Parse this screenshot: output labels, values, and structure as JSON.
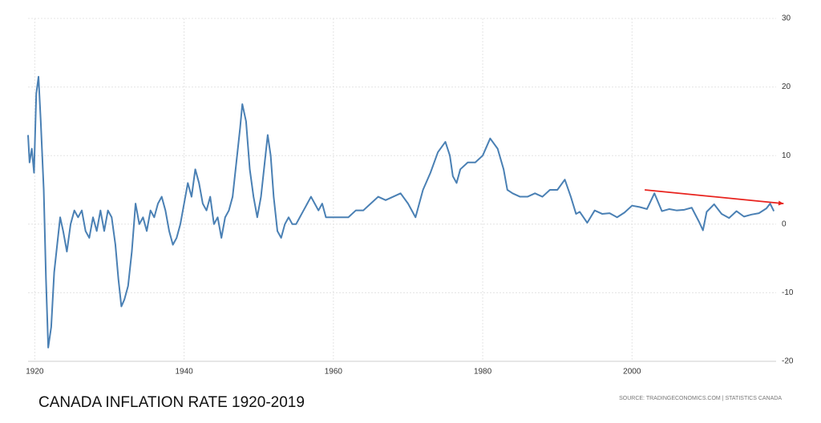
{
  "chart_data": {
    "type": "line",
    "title": "CANADA INFLATION RATE 1920-2019",
    "source": "SOURCE: TRADINGECONOMICS.COM | STATISTICS CANADA",
    "xlim": [
      1919.1,
      2019.3
    ],
    "xticks": [
      1920,
      1940,
      1960,
      1980,
      2000
    ],
    "ylim": [
      -20,
      30
    ],
    "yticks": [
      30,
      20,
      10,
      0,
      -10,
      -20
    ],
    "grid": true,
    "series": [
      {
        "name": "Inflation rate",
        "color": "#4a80b4",
        "x": [
          1919.1,
          1919.3,
          1919.6,
          1919.9,
          1920.2,
          1920.5,
          1920.8,
          1921.2,
          1921.5,
          1921.8,
          1922.2,
          1922.6,
          1923,
          1923.4,
          1923.8,
          1924.3,
          1924.8,
          1925.3,
          1925.8,
          1926.3,
          1926.8,
          1927.3,
          1927.8,
          1928.3,
          1928.8,
          1929.3,
          1929.8,
          1930.3,
          1930.8,
          1931.2,
          1931.6,
          1932,
          1932.5,
          1933,
          1933.5,
          1934,
          1934.5,
          1935,
          1935.5,
          1936,
          1936.5,
          1937,
          1937.5,
          1938,
          1938.5,
          1939,
          1939.5,
          1940,
          1940.5,
          1941,
          1941.5,
          1942,
          1942.5,
          1943,
          1943.5,
          1944,
          1944.5,
          1945,
          1945.5,
          1946,
          1946.5,
          1947,
          1947.5,
          1947.8,
          1948.3,
          1948.8,
          1949.3,
          1949.8,
          1950.3,
          1950.8,
          1951.2,
          1951.6,
          1952,
          1952.5,
          1953,
          1953.5,
          1954,
          1954.5,
          1955,
          1955.5,
          1956,
          1956.5,
          1957,
          1957.5,
          1958,
          1958.5,
          1959,
          1959.5,
          1960,
          1961,
          1962,
          1963,
          1964,
          1965,
          1966,
          1967,
          1968,
          1969,
          1970,
          1971,
          1972,
          1973,
          1974,
          1975,
          1975.6,
          1976,
          1976.5,
          1977,
          1978,
          1979,
          1980,
          1981,
          1982,
          1982.8,
          1983.3,
          1984,
          1985,
          1986,
          1987,
          1988,
          1989,
          1990,
          1991,
          1991.8,
          1992.5,
          1993,
          1994,
          1995,
          1996,
          1997,
          1998,
          1999,
          2000,
          2001,
          2002,
          2003,
          2004,
          2005,
          2006,
          2007,
          2008,
          2009,
          2009.5,
          2010,
          2011,
          2012,
          2013,
          2014,
          2015,
          2016,
          2017,
          2018,
          2018.5,
          2019
        ],
        "values": [
          13,
          9,
          11,
          7.5,
          19,
          21.5,
          15,
          5,
          -8,
          -18,
          -15,
          -7,
          -3,
          1,
          -1,
          -4,
          0,
          2,
          1,
          2,
          -1,
          -2,
          1,
          -1,
          2,
          -1,
          2,
          1,
          -3,
          -8,
          -12,
          -11,
          -9,
          -4,
          3,
          0,
          1,
          -1,
          2,
          1,
          3,
          4,
          2,
          -1,
          -3,
          -2,
          0,
          3,
          6,
          4,
          8,
          6,
          3,
          2,
          4,
          0,
          1,
          -2,
          1,
          2,
          4,
          9,
          14,
          17.5,
          15,
          8,
          4,
          1,
          4,
          9,
          13,
          10,
          4,
          -1,
          -2,
          0,
          1,
          0,
          0,
          1,
          2,
          3,
          4,
          3,
          2,
          3,
          1,
          1,
          1,
          1,
          1,
          2,
          2,
          3,
          4,
          3.5,
          4,
          4.5,
          3,
          1,
          5,
          7.5,
          10.5,
          12,
          10,
          7,
          6,
          8,
          9,
          9,
          10,
          12.5,
          11,
          8,
          5,
          4.5,
          4,
          4,
          4.5,
          4,
          5,
          5,
          6.5,
          4,
          1.5,
          1.8,
          0.2,
          2,
          1.5,
          1.6,
          1,
          1.7,
          2.7,
          2.5,
          2.2,
          4.5,
          1.9,
          2.2,
          2,
          2.1,
          2.4,
          0.3,
          -0.9,
          1.8,
          2.9,
          1.5,
          0.9,
          1.9,
          1.1,
          1.4,
          1.6,
          2.3,
          3,
          1.9
        ]
      }
    ],
    "trend_line": {
      "x": [
        2001.7,
        2020.3
      ],
      "values": [
        5,
        3
      ],
      "color": "#e8231e"
    }
  }
}
